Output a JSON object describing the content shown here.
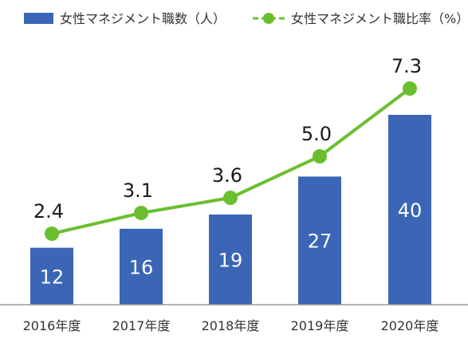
{
  "chart_data": {
    "type": "bar",
    "categories": [
      "2016年度",
      "2017年度",
      "2018年度",
      "2019年度",
      "2020年度"
    ],
    "series": [
      {
        "name": "女性マネジメント職数（人）",
        "type": "bar",
        "color": "#3a66b5",
        "values": [
          12,
          16,
          19,
          27,
          40
        ]
      },
      {
        "name": "女性マネジメント職比率（%）",
        "type": "line",
        "color": "#6bbf2f",
        "values": [
          2.4,
          3.1,
          3.6,
          5.0,
          7.3
        ]
      }
    ],
    "value_labels": {
      "bar": [
        "12",
        "16",
        "19",
        "27",
        "40"
      ],
      "line": [
        "2.4",
        "3.1",
        "3.6",
        "5.0",
        "7.3"
      ]
    },
    "bar_ylim": [
      0,
      55
    ],
    "line_ylim": [
      0,
      10
    ],
    "legend_position": "top",
    "grid": false
  }
}
